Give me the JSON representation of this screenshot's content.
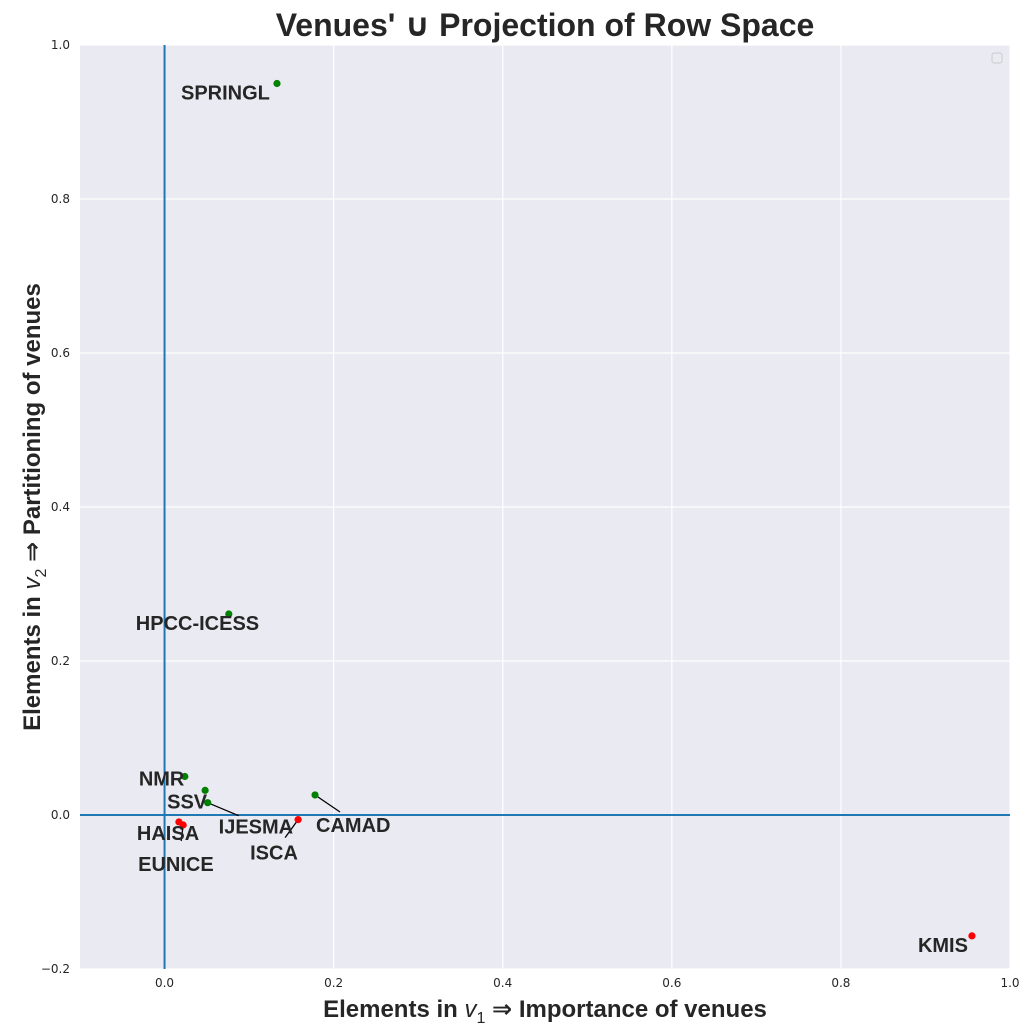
{
  "chart_data": {
    "type": "scatter",
    "title": "Venues' ∪ Projection of Row Space",
    "xlabel": {
      "prefix": "Elements in ",
      "var": "v",
      "sub": "1",
      "suffix": " ⇒  Importance of venues"
    },
    "ylabel": {
      "prefix": "Elements in ",
      "var": "v",
      "sub": "2",
      "suffix": " ⇒  Partitioning of venues"
    },
    "xlim": [
      -0.1,
      1.0
    ],
    "ylim": [
      -0.2,
      1.0
    ],
    "xticks": [
      0.0,
      0.2,
      0.4,
      0.6,
      0.8,
      1.0
    ],
    "xtick_labels": [
      "0.0",
      "0.2",
      "0.4",
      "0.6",
      "0.8",
      "1.0"
    ],
    "yticks": [
      -0.2,
      0.0,
      0.2,
      0.4,
      0.6,
      0.8,
      1.0
    ],
    "ytick_labels": [
      "−0.2",
      "0.0",
      "0.2",
      "0.4",
      "0.6",
      "0.8",
      "1.0"
    ],
    "reference_lines": {
      "x": 0.0,
      "y": 0.0,
      "color": "#1f77b4"
    },
    "grid": true,
    "background_color": "#eaeaf2",
    "grid_color": "#ffffff",
    "legend": {
      "placement": "top-right",
      "entries": []
    },
    "colors": {
      "positive": "#008000",
      "negative": "#ff0000"
    },
    "points": [
      {
        "label": "SPRINGL",
        "x": 0.133,
        "y": 0.95,
        "group": "positive"
      },
      {
        "label": "HPCC-ICESS",
        "x": 0.076,
        "y": 0.261,
        "group": "positive"
      },
      {
        "label": "NMR",
        "x": 0.024,
        "y": 0.05,
        "group": "positive"
      },
      {
        "label": "SSV",
        "x": 0.048,
        "y": 0.032,
        "group": "positive"
      },
      {
        "label": "IJESMA",
        "x": 0.051,
        "y": 0.016,
        "group": "positive"
      },
      {
        "label": "CAMAD",
        "x": 0.178,
        "y": 0.026,
        "group": "positive"
      },
      {
        "label": "HAISA",
        "x": 0.017,
        "y": -0.009,
        "group": "negative"
      },
      {
        "label": "EUNICE",
        "x": 0.022,
        "y": -0.013,
        "group": "negative"
      },
      {
        "label": "ISCA",
        "x": 0.158,
        "y": -0.006,
        "group": "negative"
      },
      {
        "label": "KMIS",
        "x": 0.955,
        "y": -0.157,
        "group": "negative"
      }
    ]
  }
}
